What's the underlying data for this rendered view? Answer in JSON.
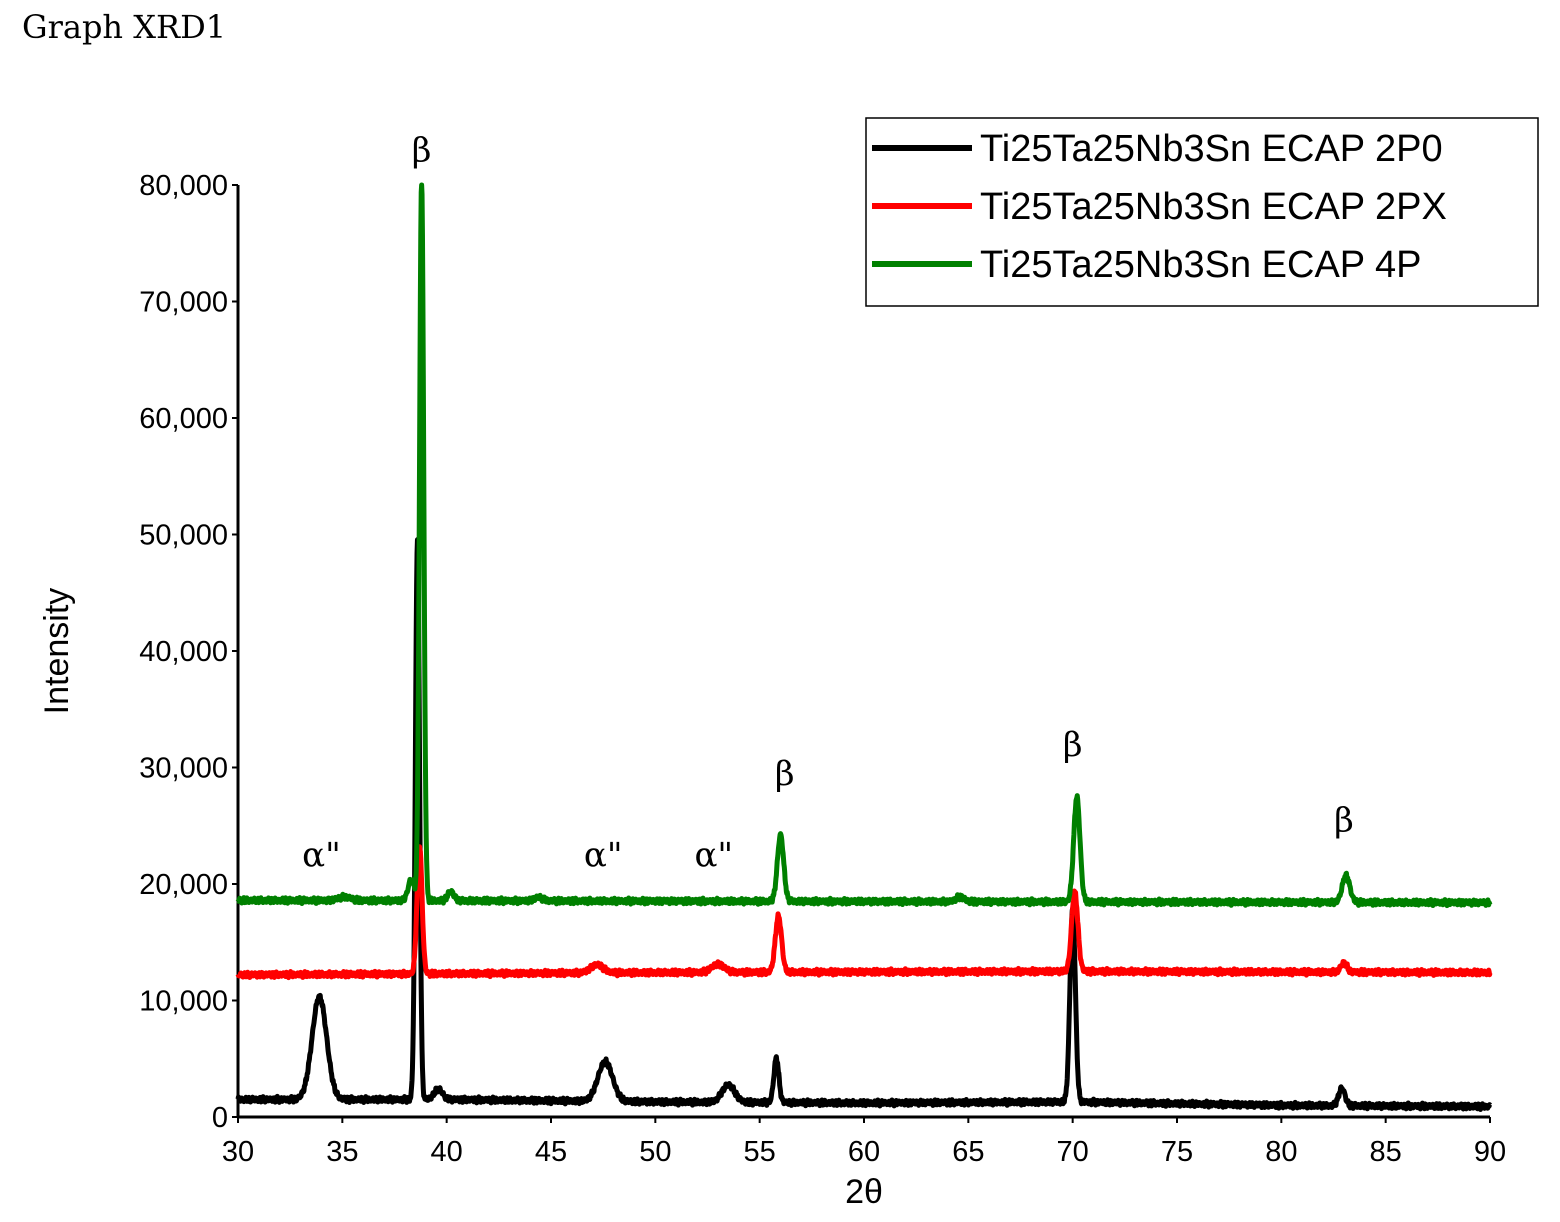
{
  "page_title": "Graph XRD1",
  "chart_data": {
    "type": "line",
    "title": "",
    "xlabel": "2θ",
    "ylabel": "Intensity",
    "xlim": [
      30,
      90
    ],
    "ylim": [
      0,
      80000
    ],
    "x_ticks": [
      30,
      35,
      40,
      45,
      50,
      55,
      60,
      65,
      70,
      75,
      80,
      85,
      90
    ],
    "y_ticks": [
      0,
      10000,
      20000,
      30000,
      40000,
      50000,
      60000,
      70000,
      80000
    ],
    "y_tick_labels": [
      "0",
      "10,000",
      "20,000",
      "30,000",
      "40,000",
      "50,000",
      "60,000",
      "70,000",
      "80,000"
    ],
    "grid": false,
    "legend_position": "top-right",
    "series": [
      {
        "name": "Ti25Ta25Nb3Sn ECAP 2P0",
        "color": "#000000",
        "baseline": [
          [
            30,
            1500
          ],
          [
            40,
            1500
          ],
          [
            50,
            1300
          ],
          [
            60,
            1200
          ],
          [
            70,
            1300
          ],
          [
            80,
            1000
          ],
          [
            90,
            900
          ]
        ],
        "peaks": [
          {
            "x": 33.9,
            "height": 8800,
            "width": 0.35
          },
          {
            "x": 38.6,
            "height": 48000,
            "width": 0.1
          },
          {
            "x": 39.6,
            "height": 900,
            "width": 0.2
          },
          {
            "x": 47.6,
            "height": 3400,
            "width": 0.35
          },
          {
            "x": 53.5,
            "height": 1500,
            "width": 0.3
          },
          {
            "x": 55.8,
            "height": 3800,
            "width": 0.12
          },
          {
            "x": 70.0,
            "height": 16500,
            "width": 0.13
          },
          {
            "x": 82.9,
            "height": 1500,
            "width": 0.15
          }
        ]
      },
      {
        "name": "Ti25Ta25Nb3Sn ECAP 2PX",
        "color": "#ff0000",
        "baseline": [
          [
            30,
            12200
          ],
          [
            50,
            12400
          ],
          [
            70,
            12500
          ],
          [
            90,
            12400
          ]
        ],
        "peaks": [
          {
            "x": 38.7,
            "height": 11000,
            "width": 0.12
          },
          {
            "x": 47.2,
            "height": 700,
            "width": 0.3
          },
          {
            "x": 53.0,
            "height": 700,
            "width": 0.3
          },
          {
            "x": 55.9,
            "height": 4800,
            "width": 0.15
          },
          {
            "x": 70.1,
            "height": 6800,
            "width": 0.15
          },
          {
            "x": 83.0,
            "height": 800,
            "width": 0.15
          }
        ]
      },
      {
        "name": "Ti25Ta25Nb3Sn ECAP 4P",
        "color": "#008000",
        "baseline": [
          [
            30,
            18600
          ],
          [
            60,
            18500
          ],
          [
            90,
            18400
          ]
        ],
        "peaks": [
          {
            "x": 35.1,
            "height": 300,
            "width": 0.3
          },
          {
            "x": 38.3,
            "height": 1800,
            "width": 0.15
          },
          {
            "x": 38.8,
            "height": 62000,
            "width": 0.1
          },
          {
            "x": 40.2,
            "height": 800,
            "width": 0.15
          },
          {
            "x": 44.4,
            "height": 300,
            "width": 0.2
          },
          {
            "x": 56.0,
            "height": 5700,
            "width": 0.15
          },
          {
            "x": 64.6,
            "height": 400,
            "width": 0.2
          },
          {
            "x": 70.2,
            "height": 9000,
            "width": 0.15
          },
          {
            "x": 83.1,
            "height": 2300,
            "width": 0.18
          }
        ]
      }
    ],
    "annotations": [
      {
        "text": "α\"",
        "x": 34.0,
        "y": 21500
      },
      {
        "text": "β",
        "x": 38.8,
        "y": 82000
      },
      {
        "text": "α\"",
        "x": 47.5,
        "y": 21500
      },
      {
        "text": "α\"",
        "x": 52.8,
        "y": 21500
      },
      {
        "text": "β",
        "x": 56.2,
        "y": 28500
      },
      {
        "text": "β",
        "x": 70.0,
        "y": 31000
      },
      {
        "text": "β",
        "x": 83.0,
        "y": 24500
      }
    ]
  }
}
